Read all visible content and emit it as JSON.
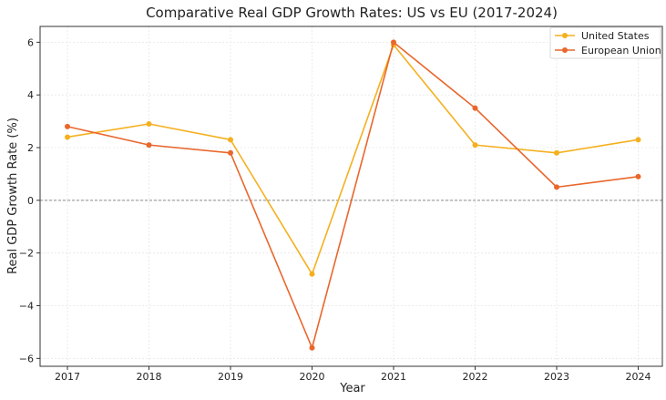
{
  "chart_data": {
    "type": "line",
    "title": "Comparative Real GDP Growth Rates: US vs EU (2017-2024)",
    "xlabel": "Year",
    "ylabel": "Real GDP Growth Rate (%)",
    "x": [
      "2017",
      "2018",
      "2019",
      "2020",
      "2021",
      "2022",
      "2023",
      "2024"
    ],
    "yticks": [
      "6",
      "4",
      "2",
      "0",
      "−2",
      "−4",
      "−6"
    ],
    "ylim": [
      -6.3,
      6.6
    ],
    "grid": true,
    "reference_line": 0,
    "legend_position": "top-right",
    "series": [
      {
        "name": "United States",
        "color": "#f5b01f",
        "values": [
          2.4,
          2.9,
          2.3,
          -2.8,
          5.9,
          2.1,
          1.8,
          2.3
        ]
      },
      {
        "name": "European Union",
        "color": "#e9672c",
        "values": [
          2.8,
          2.1,
          1.8,
          -5.6,
          6.0,
          3.5,
          0.5,
          0.9
        ]
      }
    ]
  }
}
